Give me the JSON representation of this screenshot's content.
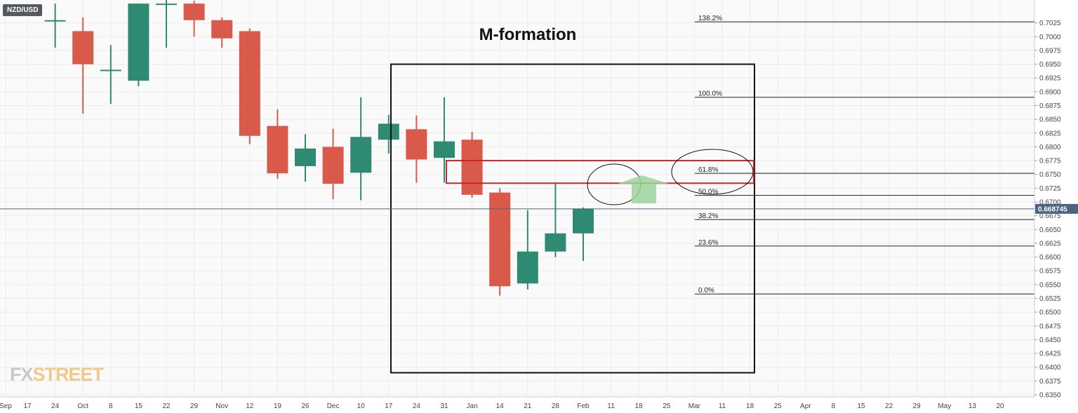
{
  "symbol": "NZD/USD",
  "logo": {
    "part1": "FX",
    "part2": "STREET"
  },
  "colors": {
    "bull": "#2f8a73",
    "bear": "#d9594a",
    "grid": "#ececec",
    "axis": "#cccccc",
    "price_badge": "#4a6485",
    "zone": "#c0282b",
    "arrow": "#9bd39a"
  },
  "chart_data": {
    "type": "candlestick",
    "title": "M-formation",
    "y_range": [
      0.635,
      0.705
    ],
    "y_ticks": [
      "0.6350",
      "0.6375",
      "0.6400",
      "0.6425",
      "0.6450",
      "0.6475",
      "0.6500",
      "0.6525",
      "0.6550",
      "0.6575",
      "0.6600",
      "0.6625",
      "0.6650",
      "0.6675",
      "0.6700",
      "0.6725",
      "0.6750",
      "0.6775",
      "0.6800",
      "0.6825",
      "0.6850",
      "0.6875",
      "0.6900",
      "0.6925",
      "0.6950",
      "0.6975",
      "0.7000",
      "0.7025"
    ],
    "x_labels": [
      "Sep",
      "17",
      "24",
      "Oct",
      "8",
      "15",
      "22",
      "29",
      "Nov",
      "12",
      "19",
      "26",
      "Dec",
      "10",
      "17",
      "24",
      "31",
      "Jan",
      "14",
      "21",
      "28",
      "Feb",
      "11",
      "18",
      "25",
      "Mar",
      "11",
      "18",
      "25",
      "Apr",
      "8",
      "15",
      "22",
      "29",
      "May",
      "13",
      "20"
    ],
    "current_price": "0.668745",
    "candles": [
      {
        "o": 0.703,
        "h": 0.706,
        "l": 0.698,
        "c": 0.703
      },
      {
        "o": 0.701,
        "h": 0.7035,
        "l": 0.686,
        "c": 0.695
      },
      {
        "o": 0.694,
        "h": 0.6985,
        "l": 0.6878,
        "c": 0.694
      },
      {
        "o": 0.692,
        "h": 0.706,
        "l": 0.691,
        "c": 0.706
      },
      {
        "o": 0.706,
        "h": 0.707,
        "l": 0.698,
        "c": 0.706
      },
      {
        "o": 0.706,
        "h": 0.7065,
        "l": 0.7,
        "c": 0.703
      },
      {
        "o": 0.703,
        "h": 0.7035,
        "l": 0.698,
        "c": 0.6997
      },
      {
        "o": 0.701,
        "h": 0.7015,
        "l": 0.6805,
        "c": 0.682
      },
      {
        "o": 0.6838,
        "h": 0.6868,
        "l": 0.6742,
        "c": 0.6752
      },
      {
        "o": 0.6765,
        "h": 0.6823,
        "l": 0.6737,
        "c": 0.6797
      },
      {
        "o": 0.68,
        "h": 0.6833,
        "l": 0.6705,
        "c": 0.6733
      },
      {
        "o": 0.6753,
        "h": 0.689,
        "l": 0.6703,
        "c": 0.6818
      },
      {
        "o": 0.6813,
        "h": 0.6858,
        "l": 0.6788,
        "c": 0.6842
      },
      {
        "o": 0.6832,
        "h": 0.6857,
        "l": 0.6735,
        "c": 0.6777
      },
      {
        "o": 0.678,
        "h": 0.689,
        "l": 0.6735,
        "c": 0.681
      },
      {
        "o": 0.6813,
        "h": 0.6827,
        "l": 0.6708,
        "c": 0.6713
      },
      {
        "o": 0.6717,
        "h": 0.6725,
        "l": 0.653,
        "c": 0.6547
      },
      {
        "o": 0.6552,
        "h": 0.6685,
        "l": 0.6541,
        "c": 0.661
      },
      {
        "o": 0.661,
        "h": 0.6735,
        "l": 0.66,
        "c": 0.6643
      },
      {
        "o": 0.6643,
        "h": 0.669,
        "l": 0.6593,
        "c": 0.6688
      }
    ],
    "fib_levels": [
      {
        "label": "0.0%",
        "price": 0.6533
      },
      {
        "label": "23.6%",
        "price": 0.662
      },
      {
        "label": "38.2%",
        "price": 0.6668
      },
      {
        "label": "50.0%",
        "price": 0.6712
      },
      {
        "label": "61.8%",
        "price": 0.6752
      },
      {
        "label": "100.0%",
        "price": 0.689
      },
      {
        "label": "138.2%",
        "price": 0.7027
      }
    ],
    "zone": {
      "price_top": 0.6775,
      "price_bottom": 0.6734
    },
    "box": {
      "price_top": 0.695,
      "price_bottom": 0.639
    }
  }
}
